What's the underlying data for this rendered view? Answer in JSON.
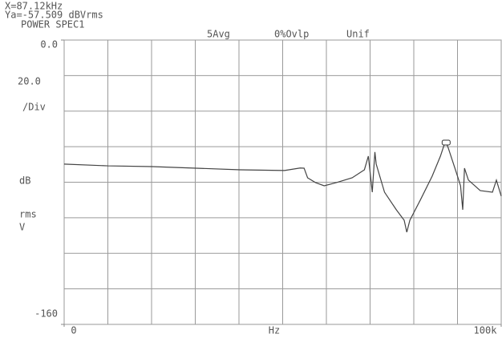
{
  "chart_data": {
    "type": "line",
    "header": {
      "marker_x": "X=87.12kHz",
      "marker_y": "Ya=-57.509 dBVrms",
      "measurement": "POWER SPEC1",
      "averaging": "5Avg",
      "overlap": "0%Ovlp",
      "window": "Unif"
    },
    "xlabel": "Hz",
    "y_div": {
      "value": 20,
      "label": "20.0"
    },
    "y_div_unit": "/Div",
    "yunit_lines": [
      "dB",
      "rms",
      "V"
    ],
    "x_divisions": 10,
    "xlim": [
      0,
      100
    ],
    "xticks": [
      0,
      {
        "value": 100,
        "label": "100k"
      }
    ],
    "ylim": [
      -160,
      0
    ],
    "yticks": [
      {
        "value": 0,
        "label": "0.0"
      },
      -160
    ],
    "grid": true,
    "color": "#444444",
    "x": [
      0,
      10,
      20.1,
      30.2,
      40.3,
      50.4,
      54,
      54.9,
      55.7,
      57.5,
      59.5,
      62.3,
      65.9,
      68.7,
      69.6,
      70,
      70.5,
      71.1,
      71.4,
      73.3,
      76,
      77.8,
      78.4,
      79.1,
      81.5,
      84.2,
      86.1,
      87,
      87.4,
      87.9,
      89.7,
      90.7,
      91.2,
      91.6,
      92.5,
      95.2,
      98,
      98.9,
      100
    ],
    "values": [
      -69.8,
      -70.8,
      -71.2,
      -72.1,
      -73,
      -73.4,
      -72,
      -72.1,
      -77.5,
      -80.2,
      -82,
      -80.2,
      -77.5,
      -73,
      -65.3,
      -74.3,
      -85.6,
      -63,
      -69.8,
      -85.6,
      -95.5,
      -101.4,
      -108.1,
      -101.4,
      -90,
      -76.6,
      -65.3,
      -58.6,
      -57.7,
      -60.8,
      -74.3,
      -82,
      -95.5,
      -72.1,
      -78.8,
      -84.7,
      -85.6,
      -78.8,
      -87.8
    ]
  }
}
